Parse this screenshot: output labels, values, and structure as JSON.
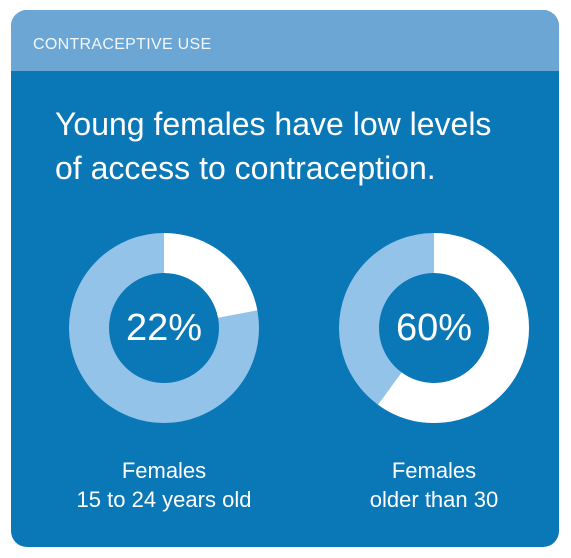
{
  "header": {
    "label": "CONTRACEPTIVE USE"
  },
  "headline": {
    "line1": "Young females have low levels",
    "line2": "of access to contraception."
  },
  "colors": {
    "background": "#0a77b7",
    "header": "#6ba6d4",
    "ring_light": "#93c3e9",
    "ring_highlight": "#ffffff"
  },
  "chart_data": [
    {
      "type": "pie",
      "value_percent": 22,
      "label": "22%",
      "caption_line1": "Females",
      "caption_line2": "15 to 24 years old"
    },
    {
      "type": "pie",
      "value_percent": 60,
      "label": "60%",
      "caption_line1": "Females",
      "caption_line2": "older than 30"
    }
  ]
}
